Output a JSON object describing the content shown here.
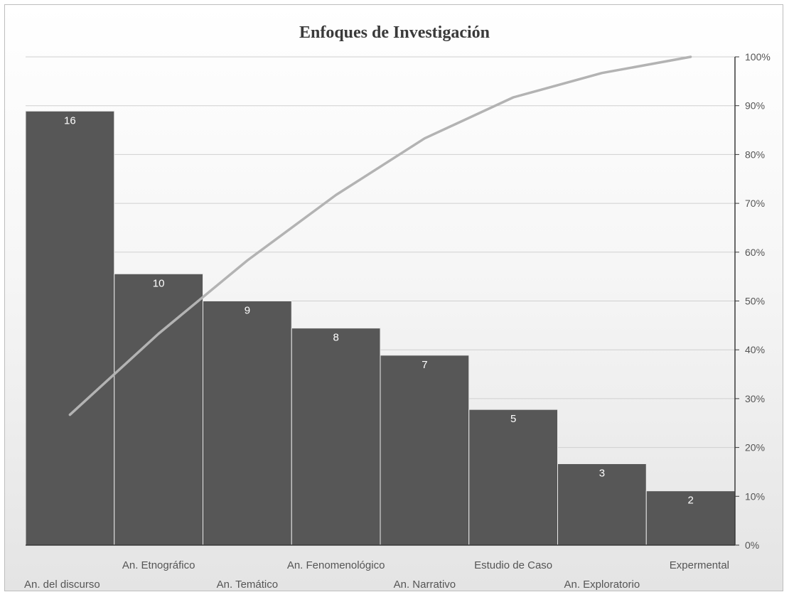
{
  "chart_data": {
    "type": "bar",
    "title": "Enfoques de Investigación",
    "categories": [
      "An. del discurso",
      "An. Etnográfico",
      "An. Temático",
      "An. Fenomenológico",
      "An. Narrativo",
      "Estudio de Caso",
      "An. Exploratorio",
      "Expermental"
    ],
    "values": [
      16,
      10,
      9,
      8,
      7,
      5,
      3,
      2
    ],
    "cumulative_percent": [
      26.7,
      43.3,
      58.3,
      71.7,
      83.3,
      91.7,
      96.7,
      100
    ],
    "y2_ticks": [
      "0%",
      "10%",
      "20%",
      "30%",
      "40%",
      "50%",
      "60%",
      "70%",
      "80%",
      "90%",
      "100%"
    ],
    "ylim": [
      0,
      18
    ],
    "y2lim": [
      0,
      100
    ],
    "grid": true,
    "legend": "none",
    "colors": {
      "bar": "#575757",
      "bar_edge": "#e8e8e8",
      "line": "#b3b3b3",
      "grid": "#d0d0d0",
      "axis": "#3a3a3a"
    }
  }
}
